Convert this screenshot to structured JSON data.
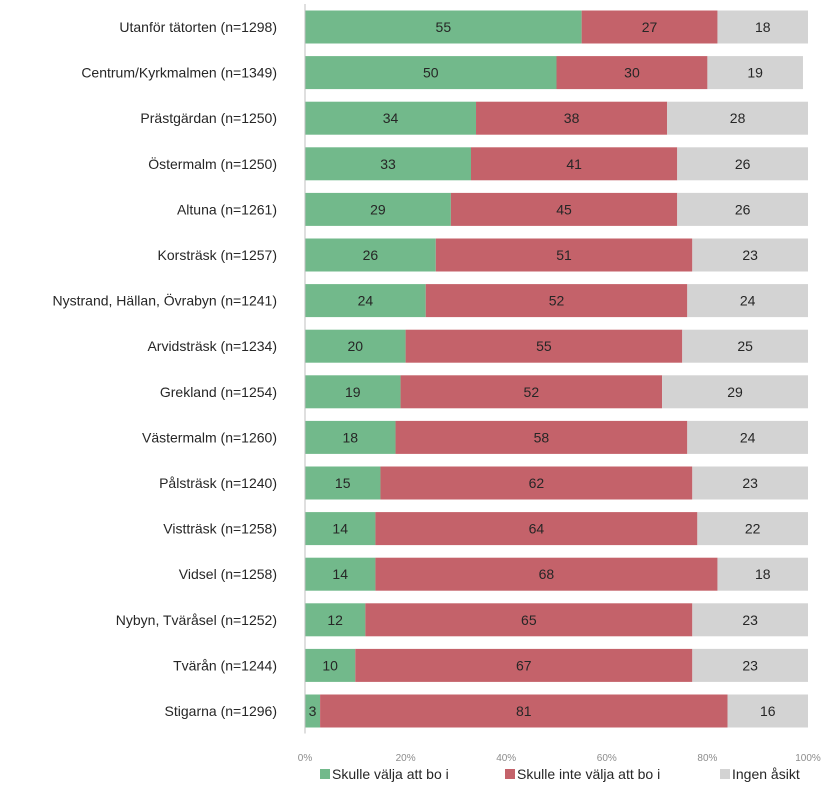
{
  "chart_data": {
    "type": "bar",
    "orientation": "horizontal",
    "stacked": "percent",
    "categories": [
      "Utanför tätorten (n=1298)",
      "Centrum/Kyrkmalmen (n=1349)",
      "Prästgärdan (n=1250)",
      "Östermalm (n=1250)",
      "Altuna (n=1261)",
      "Korsträsk (n=1257)",
      "Nystrand, Hällan, Övrabyn (n=1241)",
      "Arvidsträsk (n=1234)",
      "Grekland (n=1254)",
      "Västermalm (n=1260)",
      "Pålsträsk (n=1240)",
      "Vistträsk (n=1258)",
      "Vidsel (n=1258)",
      "Nybyn, Tväråsel (n=1252)",
      "Tvärån (n=1244)",
      "Stigarna (n=1296)"
    ],
    "series": [
      {
        "name": "Skulle välja att bo i",
        "color": "#72b98b",
        "values": [
          55,
          50,
          34,
          33,
          29,
          26,
          24,
          20,
          19,
          18,
          15,
          14,
          14,
          12,
          10,
          3
        ]
      },
      {
        "name": "Skulle inte välja att bo i",
        "color": "#c4626a",
        "values": [
          27,
          30,
          38,
          41,
          45,
          51,
          52,
          55,
          52,
          58,
          62,
          64,
          68,
          65,
          67,
          81
        ]
      },
      {
        "name": "Ingen åsikt",
        "color": "#d3d3d3",
        "values": [
          18,
          19,
          28,
          26,
          26,
          23,
          24,
          25,
          29,
          24,
          23,
          22,
          18,
          23,
          23,
          16
        ]
      }
    ],
    "xlim": [
      0,
      100
    ],
    "ticks": [
      "0%",
      "20%",
      "40%",
      "60%",
      "80%",
      "100%"
    ],
    "legend_position": "bottom",
    "grid": false,
    "title": "",
    "xlabel": "",
    "ylabel": ""
  }
}
